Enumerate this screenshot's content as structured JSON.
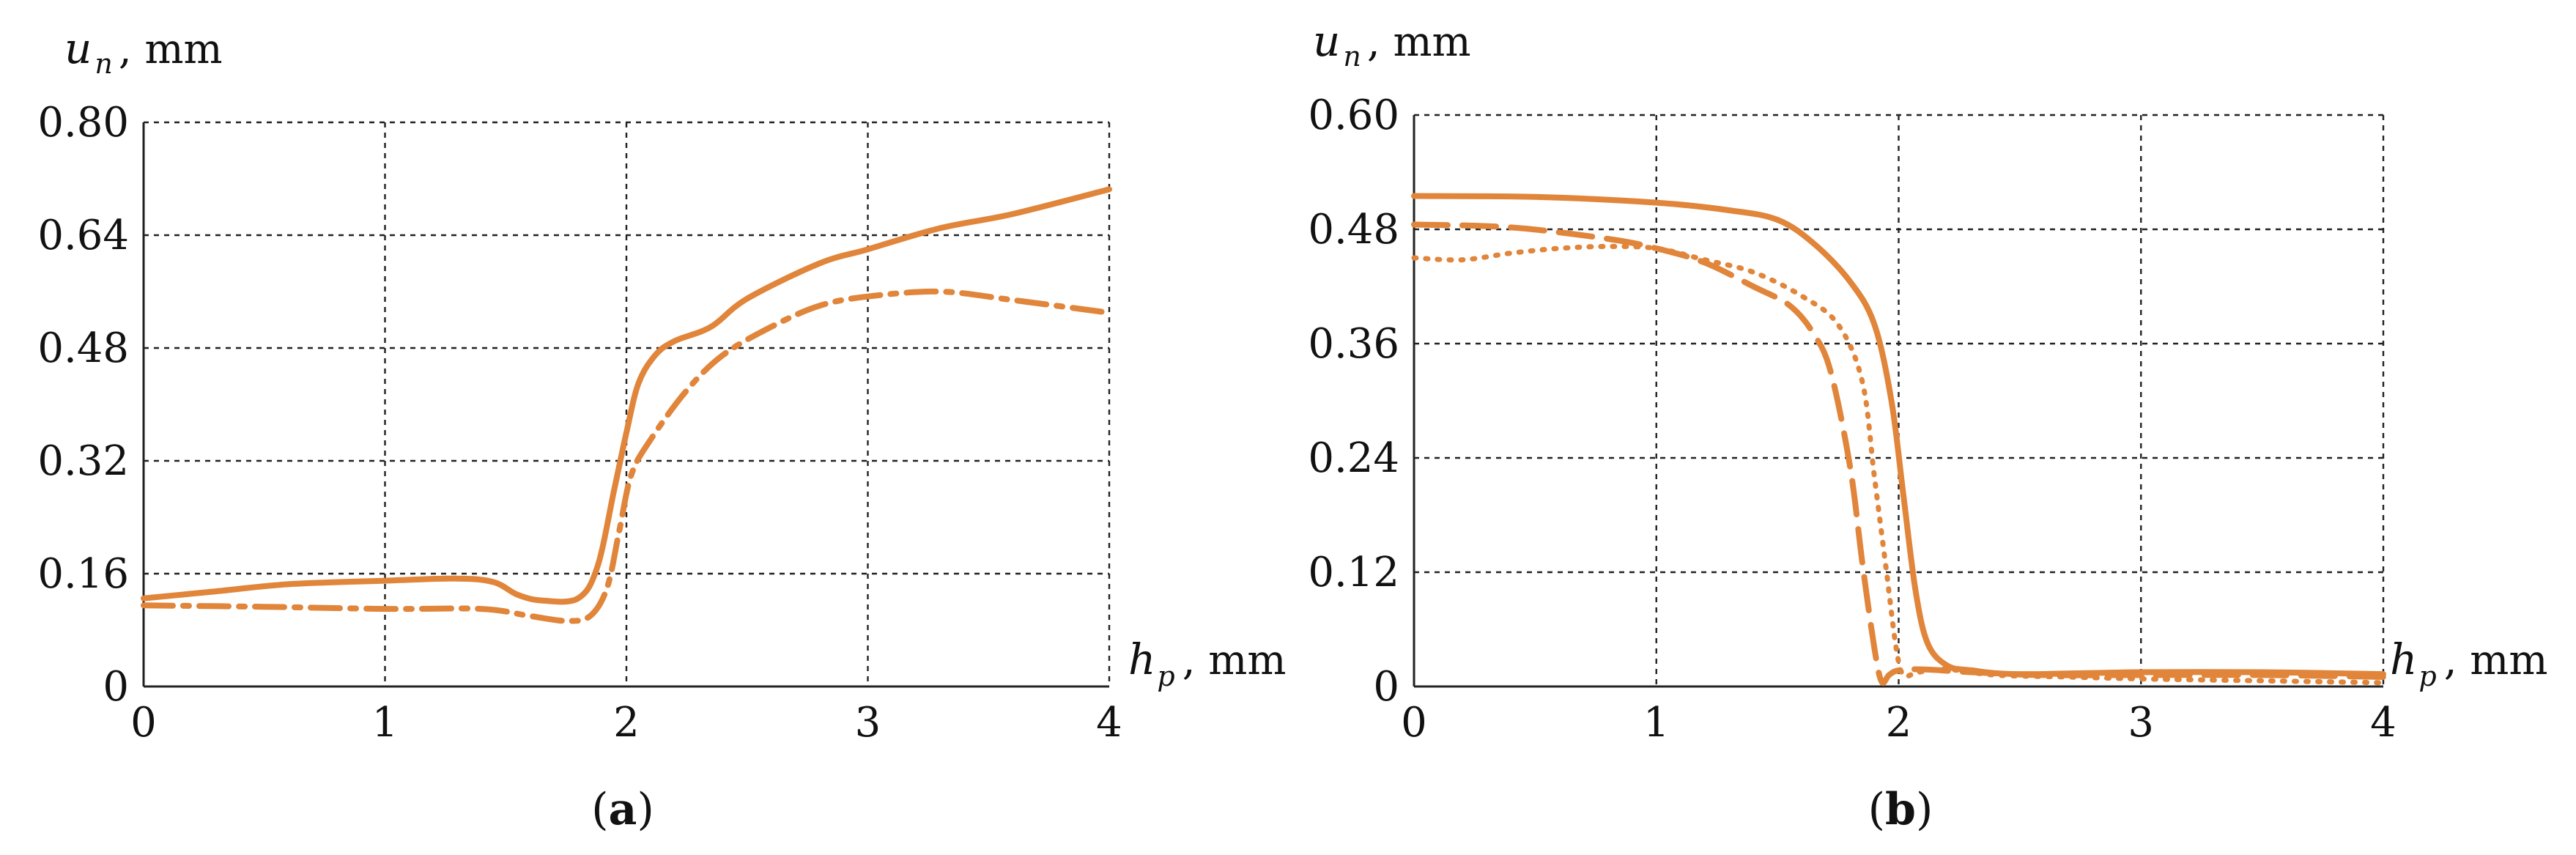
{
  "colors": {
    "series": "#E0853A",
    "axis": "#222222",
    "grid": "#222222"
  },
  "chart_data": [
    {
      "type": "line",
      "panel_label": "a",
      "ylabel_var": "u",
      "ylabel_sub": "n",
      "ylabel_unit": ", mm",
      "xlabel_var": "h",
      "xlabel_sub": "p",
      "xlabel_unit": ", mm",
      "xlim": [
        0,
        4
      ],
      "ylim": [
        0,
        0.8
      ],
      "xticks": [
        "0",
        "1",
        "2",
        "3",
        "4"
      ],
      "yticks": [
        "0",
        "0.16",
        "0.32",
        "0.48",
        "0.64",
        "0.80"
      ],
      "grid": true,
      "series": [
        {
          "name": "solid",
          "style": "solid",
          "x": [
            0,
            0.3,
            0.6,
            1.0,
            1.3,
            1.45,
            1.55,
            1.65,
            1.8,
            1.88,
            1.95,
            2.0,
            2.05,
            2.12,
            2.2,
            2.35,
            2.5,
            2.8,
            3.0,
            3.3,
            3.6,
            4.0
          ],
          "y": [
            0.125,
            0.135,
            0.145,
            0.15,
            0.153,
            0.148,
            0.13,
            0.122,
            0.125,
            0.17,
            0.28,
            0.36,
            0.43,
            0.47,
            0.49,
            0.51,
            0.55,
            0.6,
            0.62,
            0.65,
            0.67,
            0.705
          ]
        },
        {
          "name": "dash-dot",
          "style": "dashdot",
          "x": [
            0,
            0.5,
            1.0,
            1.4,
            1.6,
            1.75,
            1.85,
            1.92,
            1.97,
            2.02,
            2.1,
            2.25,
            2.4,
            2.6,
            2.8,
            3.0,
            3.3,
            3.6,
            4.0
          ],
          "y": [
            0.115,
            0.113,
            0.11,
            0.11,
            0.1,
            0.093,
            0.1,
            0.14,
            0.22,
            0.3,
            0.35,
            0.42,
            0.47,
            0.51,
            0.54,
            0.553,
            0.56,
            0.548,
            0.53
          ]
        }
      ]
    },
    {
      "type": "line",
      "panel_label": "b",
      "ylabel_var": "u",
      "ylabel_sub": "n",
      "ylabel_unit": ", mm",
      "xlabel_var": "h",
      "xlabel_sub": "p",
      "xlabel_unit": ", mm",
      "xlim": [
        0,
        4
      ],
      "ylim": [
        0,
        0.6
      ],
      "xticks": [
        "0",
        "1",
        "2",
        "3",
        "4"
      ],
      "yticks": [
        "0",
        "0.12",
        "0.24",
        "0.36",
        "0.48",
        "0.60"
      ],
      "grid": true,
      "series": [
        {
          "name": "solid",
          "style": "solid",
          "x": [
            0,
            0.5,
            1.0,
            1.3,
            1.5,
            1.65,
            1.8,
            1.9,
            1.97,
            2.02,
            2.07,
            2.12,
            2.2,
            2.3,
            2.5,
            3.0,
            3.5,
            4.0
          ],
          "y": [
            0.515,
            0.514,
            0.508,
            0.5,
            0.49,
            0.465,
            0.425,
            0.38,
            0.3,
            0.2,
            0.1,
            0.045,
            0.022,
            0.017,
            0.013,
            0.015,
            0.015,
            0.013
          ]
        },
        {
          "name": "dashed",
          "style": "dashed",
          "x": [
            0,
            0.4,
            0.8,
            1.0,
            1.2,
            1.4,
            1.55,
            1.65,
            1.72,
            1.8,
            1.85,
            1.9,
            1.93,
            1.96,
            2.0,
            2.1,
            2.3,
            2.6,
            3.0,
            3.5,
            4.0
          ],
          "y": [
            0.485,
            0.482,
            0.47,
            0.46,
            0.445,
            0.42,
            0.4,
            0.37,
            0.33,
            0.23,
            0.13,
            0.04,
            0.005,
            0.012,
            0.017,
            0.018,
            0.015,
            0.012,
            0.012,
            0.012,
            0.01
          ]
        },
        {
          "name": "dotted",
          "style": "dotted",
          "x": [
            0,
            0.2,
            0.4,
            0.6,
            0.8,
            1.0,
            1.2,
            1.4,
            1.6,
            1.75,
            1.85,
            1.9,
            1.95,
            1.99,
            2.02,
            2.08,
            2.2,
            2.4,
            2.7,
            3.0,
            3.5,
            4.0
          ],
          "y": [
            0.45,
            0.448,
            0.455,
            0.46,
            0.462,
            0.46,
            0.448,
            0.435,
            0.41,
            0.38,
            0.32,
            0.22,
            0.12,
            0.04,
            0.012,
            0.015,
            0.018,
            0.012,
            0.01,
            0.008,
            0.006,
            0.004
          ]
        }
      ]
    }
  ]
}
